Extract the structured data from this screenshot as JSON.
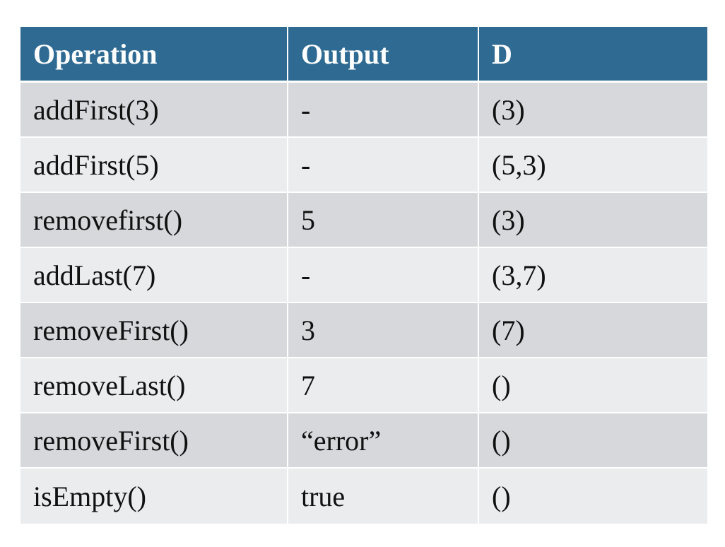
{
  "table": {
    "headers": [
      "Operation",
      "Output",
      "D"
    ],
    "rows": [
      [
        "addFirst(3)",
        "-",
        "(3)"
      ],
      [
        "addFirst(5)",
        "-",
        "(5,3)"
      ],
      [
        "removefirst()",
        "5",
        "(3)"
      ],
      [
        "addLast(7)",
        "-",
        "(3,7)"
      ],
      [
        "removeFirst()",
        "3",
        "(7)"
      ],
      [
        "removeLast()",
        "7",
        "()"
      ],
      [
        "removeFirst()",
        "“error”",
        "()"
      ],
      [
        "isEmpty()",
        "true",
        "()"
      ]
    ]
  },
  "colors": {
    "header_bg": "#2e6a92",
    "row_odd_bg": "#d6d8dc",
    "row_even_bg": "#ebecee"
  }
}
